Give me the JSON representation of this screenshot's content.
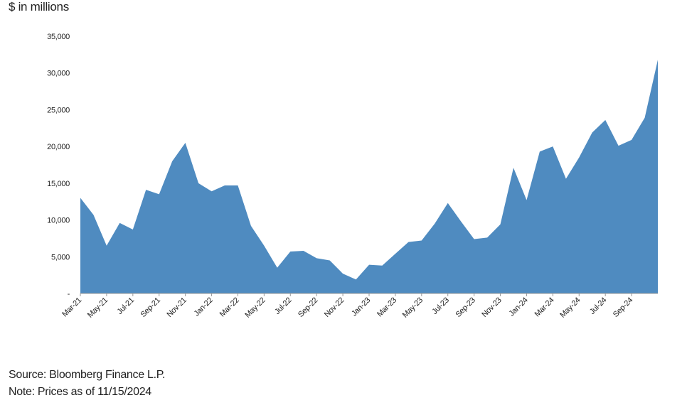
{
  "chart_data": {
    "type": "area",
    "ylabel": "$ in millions",
    "source": "Source: Bloomberg Finance L.P.",
    "note": "Note: Prices as of 11/15/2024",
    "color": "#4f8bc0",
    "categories": [
      "Mar-21",
      null,
      "May-21",
      null,
      "Jul-21",
      null,
      "Sep-21",
      null,
      "Nov-21",
      null,
      "Jan-22",
      null,
      "Mar-22",
      null,
      "May-22",
      null,
      "Jul-22",
      null,
      "Sep-22",
      null,
      "Nov-22",
      null,
      "Jan-23",
      null,
      "Mar-23",
      null,
      "May-23",
      null,
      "Jul-23",
      null,
      "Sep-23",
      null,
      "Nov-23",
      null,
      "Jan-24",
      null,
      "Mar-24",
      null,
      "May-24",
      null,
      "Jul-24",
      null,
      "Sep-24",
      null,
      null
    ],
    "values": [
      13000,
      10700,
      6500,
      9600,
      8700,
      14100,
      13500,
      18000,
      20500,
      15000,
      13900,
      14700,
      14700,
      9200,
      6500,
      3500,
      5700,
      5800,
      4800,
      4500,
      2700,
      1900,
      3900,
      3800,
      5400,
      7000,
      7200,
      9500,
      12300,
      9800,
      7400,
      7600,
      9400,
      17100,
      12700,
      19300,
      20000,
      15600,
      18500,
      21900,
      23600,
      20100,
      20900,
      23900,
      31800
    ],
    "ylim": [
      0,
      35000
    ],
    "yticks": [
      {
        "value": 0,
        "label": "-"
      },
      {
        "value": 5000,
        "label": "5,000"
      },
      {
        "value": 10000,
        "label": "10,000"
      },
      {
        "value": 15000,
        "label": "15,000"
      },
      {
        "value": 20000,
        "label": "20,000"
      },
      {
        "value": 25000,
        "label": "25,000"
      },
      {
        "value": 30000,
        "label": "30,000"
      },
      {
        "value": 35000,
        "label": "35,000"
      }
    ]
  }
}
